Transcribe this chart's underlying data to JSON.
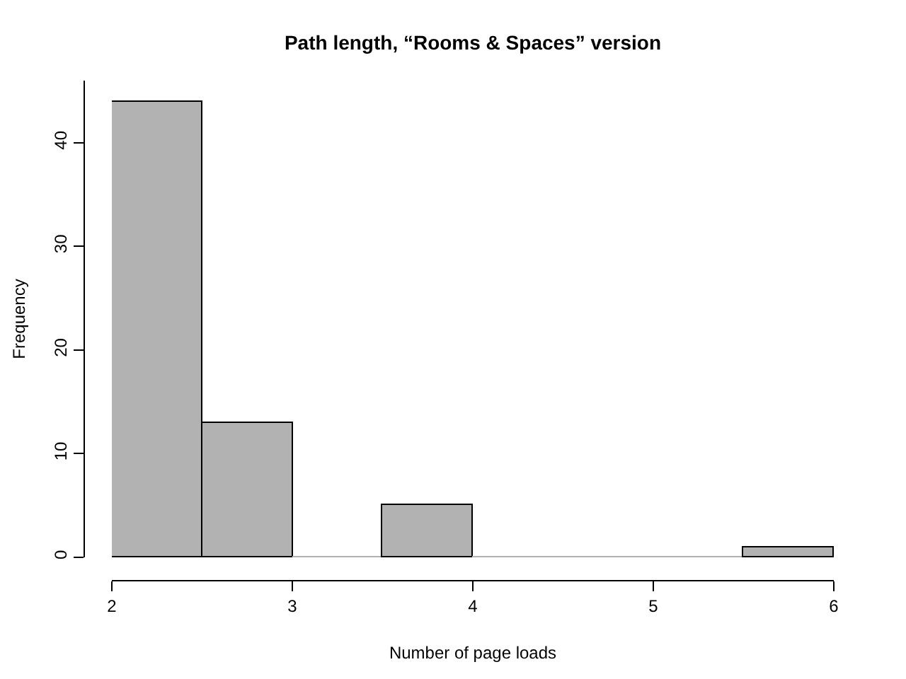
{
  "chart_data": {
    "type": "histogram",
    "title": "Path length, “Rooms & Spaces” version",
    "xlabel": "Number of page loads",
    "ylabel": "Frequency",
    "bins": [
      2,
      2.5,
      3,
      3.5,
      4,
      4.5,
      5,
      5.5,
      6
    ],
    "values": [
      44,
      13,
      0,
      5,
      0,
      0,
      0,
      1
    ],
    "color": "#b2b2b2",
    "xlim": [
      2,
      6
    ],
    "xticks": [
      2,
      3,
      4,
      5,
      6
    ],
    "ylim": [
      0,
      46
    ],
    "yticks": [
      0,
      10,
      20,
      30,
      40
    ]
  }
}
